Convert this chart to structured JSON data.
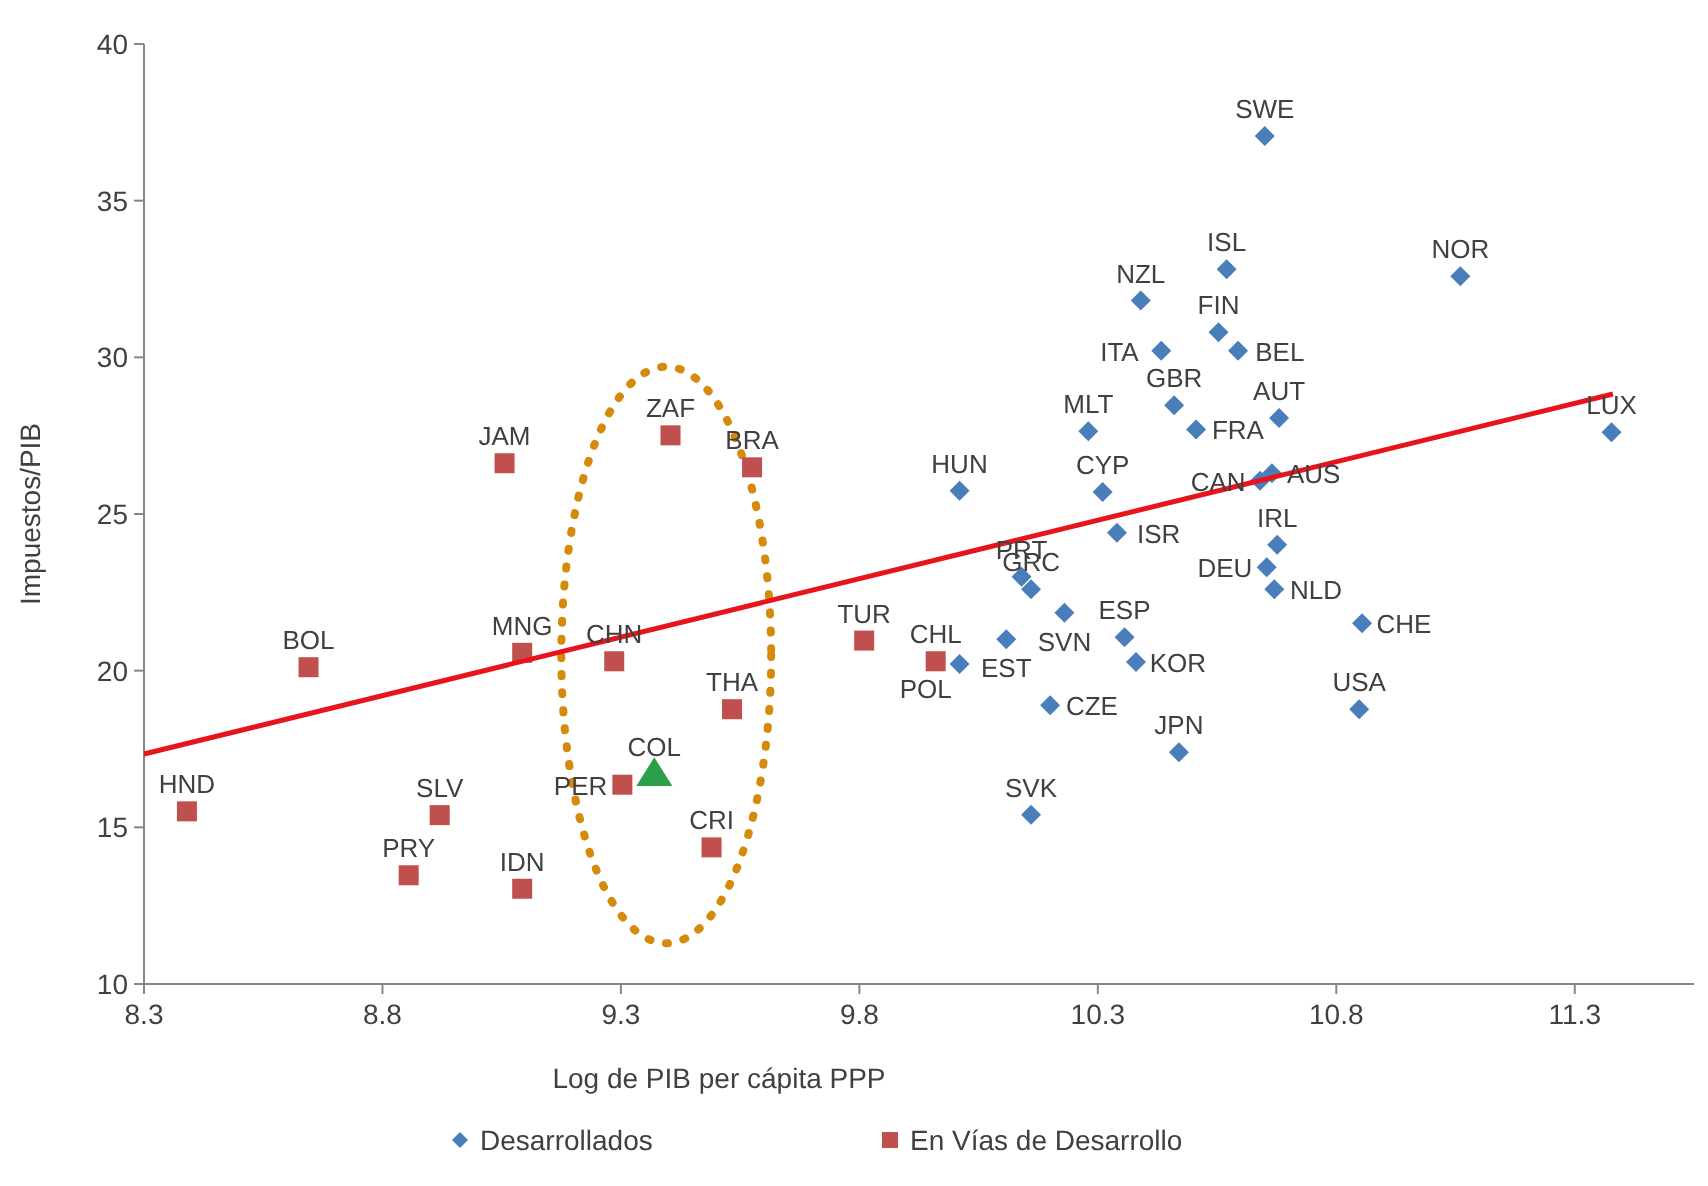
{
  "chart_data": {
    "type": "scatter",
    "xlabel": "Log de PIB per cápita PPP",
    "ylabel": "Impuestos/PIB",
    "xlim": [
      8.3,
      11.55
    ],
    "ylim": [
      10,
      40
    ],
    "xticks": [
      8.3,
      8.8,
      9.3,
      9.8,
      10.3,
      10.8,
      11.3
    ],
    "yticks": [
      10,
      15,
      20,
      25,
      30,
      35,
      40
    ],
    "grid": false,
    "legend": "bottom",
    "series": [
      {
        "name": "Desarrollados",
        "marker": "diamond",
        "color": "#4a7ebb",
        "x": [
          10.65,
          10.57,
          11.06,
          10.39,
          10.433,
          10.553,
          10.594,
          10.46,
          10.506,
          10.28,
          11.377,
          10.68,
          10.64,
          10.665,
          10.01,
          10.31,
          10.34,
          10.14,
          10.16,
          10.23,
          10.108,
          10.01,
          10.356,
          10.38,
          10.2,
          10.47,
          10.16,
          10.676,
          10.654,
          10.67,
          10.854,
          10.848
        ],
        "values": [
          37.06,
          32.81,
          32.59,
          31.81,
          30.21,
          30.8,
          30.21,
          28.47,
          27.7,
          27.64,
          27.61,
          28.06,
          26.06,
          26.3,
          25.74,
          25.7,
          24.4,
          23.0,
          22.6,
          21.85,
          21.0,
          20.21,
          21.07,
          20.28,
          18.9,
          17.4,
          15.4,
          24.02,
          23.3,
          22.6,
          21.51,
          18.77
        ]
      },
      {
        "name": "En Vías de Desarrollo",
        "marker": "square",
        "color": "#c0504d",
        "x": [
          8.39,
          8.645,
          8.855,
          8.92,
          9.056,
          9.093,
          9.093,
          9.286,
          9.303,
          9.404,
          9.49,
          9.533,
          9.575,
          9.81,
          9.96
        ],
        "values": [
          15.51,
          20.11,
          13.47,
          15.39,
          26.62,
          20.57,
          13.04,
          20.3,
          16.36,
          27.51,
          14.36,
          18.77,
          26.49,
          20.96,
          20.3
        ]
      },
      {
        "marker": "triangle",
        "color": "#2ca048",
        "x": [
          9.37
        ],
        "values": [
          16.7
        ]
      },
      {
        "type": "line",
        "marker": "none",
        "color": "#e8141b",
        "x": [
          8.3,
          11.38
        ],
        "values": [
          17.34,
          28.83
        ]
      }
    ],
    "annotations": [
      {
        "text": "SWE",
        "x": 10.65,
        "y": 37.06
      },
      {
        "text": "ISL",
        "x": 10.57,
        "y": 32.81
      },
      {
        "text": "NOR",
        "x": 11.06,
        "y": 32.59
      },
      {
        "text": "NZL",
        "x": 10.39,
        "y": 31.81
      },
      {
        "text": "ITA",
        "x": 10.433,
        "y": 30.21
      },
      {
        "text": "FIN",
        "x": 10.553,
        "y": 30.8
      },
      {
        "text": "BEL",
        "x": 10.594,
        "y": 30.21
      },
      {
        "text": "GBR",
        "x": 10.46,
        "y": 28.47
      },
      {
        "text": "FRA",
        "x": 10.506,
        "y": 27.7
      },
      {
        "text": "MLT",
        "x": 10.28,
        "y": 27.64
      },
      {
        "text": "LUX",
        "x": 11.377,
        "y": 27.61
      },
      {
        "text": "AUT",
        "x": 10.68,
        "y": 28.06
      },
      {
        "text": "CAN",
        "x": 10.64,
        "y": 26.06
      },
      {
        "text": "AUS",
        "x": 10.665,
        "y": 26.3
      },
      {
        "text": "HUN",
        "x": 10.01,
        "y": 25.74
      },
      {
        "text": "CYP",
        "x": 10.31,
        "y": 25.7
      },
      {
        "text": "ISR",
        "x": 10.34,
        "y": 24.4
      },
      {
        "text": "PRT",
        "x": 10.14,
        "y": 23.0
      },
      {
        "text": "GRC",
        "x": 10.16,
        "y": 22.6
      },
      {
        "text": "SVN",
        "x": 10.23,
        "y": 21.85
      },
      {
        "text": "EST",
        "x": 10.108,
        "y": 21.0
      },
      {
        "text": "POL",
        "x": 10.01,
        "y": 20.21
      },
      {
        "text": "ESP",
        "x": 10.356,
        "y": 21.07
      },
      {
        "text": "KOR",
        "x": 10.38,
        "y": 20.28
      },
      {
        "text": "CZE",
        "x": 10.2,
        "y": 18.9
      },
      {
        "text": "JPN",
        "x": 10.47,
        "y": 17.4
      },
      {
        "text": "SVK",
        "x": 10.16,
        "y": 15.4
      },
      {
        "text": "IRL",
        "x": 10.676,
        "y": 24.02
      },
      {
        "text": "DEU",
        "x": 10.654,
        "y": 23.3
      },
      {
        "text": "NLD",
        "x": 10.67,
        "y": 22.6
      },
      {
        "text": "CHE",
        "x": 10.854,
        "y": 21.51
      },
      {
        "text": "USA",
        "x": 10.848,
        "y": 18.77
      },
      {
        "text": "HND",
        "x": 8.39,
        "y": 15.51
      },
      {
        "text": "BOL",
        "x": 8.645,
        "y": 20.11
      },
      {
        "text": "PRY",
        "x": 8.855,
        "y": 13.47
      },
      {
        "text": "SLV",
        "x": 8.92,
        "y": 15.39
      },
      {
        "text": "JAM",
        "x": 9.056,
        "y": 26.62
      },
      {
        "text": "MNG",
        "x": 9.093,
        "y": 20.57
      },
      {
        "text": "IDN",
        "x": 9.093,
        "y": 13.04
      },
      {
        "text": "CHN",
        "x": 9.286,
        "y": 20.3
      },
      {
        "text": "PER",
        "x": 9.303,
        "y": 16.36
      },
      {
        "text": "ZAF",
        "x": 9.404,
        "y": 27.51
      },
      {
        "text": "CRI",
        "x": 9.49,
        "y": 14.36
      },
      {
        "text": "THA",
        "x": 9.533,
        "y": 18.77
      },
      {
        "text": "BRA",
        "x": 9.575,
        "y": 26.49
      },
      {
        "text": "TUR",
        "x": 9.81,
        "y": 20.96
      },
      {
        "text": "CHL",
        "x": 9.96,
        "y": 20.3
      },
      {
        "text": "COL",
        "x": 9.37,
        "y": 16.7
      }
    ]
  }
}
